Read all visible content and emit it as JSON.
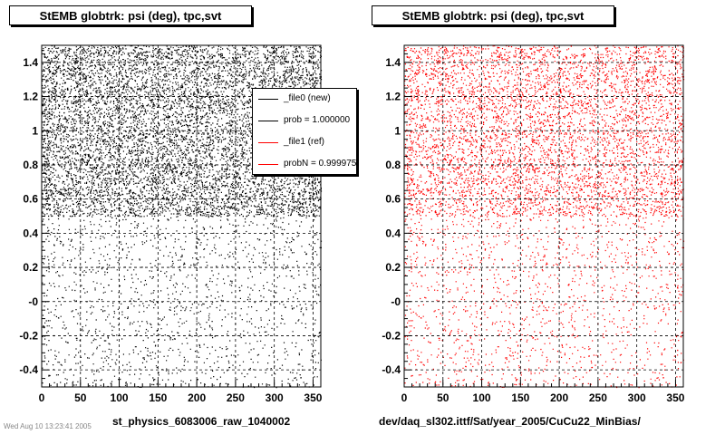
{
  "chart_data": [
    {
      "type": "scatter",
      "title": "StEMB globtrk: psi (deg), tpc,svt",
      "xlabel": "st_physics_6083006_raw_1040002",
      "ylabel": "",
      "xlim": [
        0,
        360
      ],
      "ylim": [
        -0.5,
        1.5
      ],
      "x_ticks": [
        0,
        50,
        100,
        150,
        200,
        250,
        300,
        350
      ],
      "y_ticks": [
        -0.4,
        -0.2,
        0,
        0.2,
        0.4,
        0.6,
        0.8,
        1,
        1.2,
        1.4
      ],
      "y_tick_labels": [
        "-0.4",
        "-0.2",
        "-0",
        "0.2",
        "0.4",
        "0.6",
        "0.8",
        "1",
        "1.2",
        "1.4"
      ],
      "grid": true,
      "series": [
        {
          "name": "_file0 (new)",
          "color": "#000000",
          "dense_band_y": [
            0.5,
            1.5
          ],
          "sparse_band_y": [
            -0.5,
            0.5
          ],
          "x_range": [
            0,
            360
          ]
        }
      ],
      "legend": {
        "placement": "top-right",
        "entries": [
          {
            "label": "_file0 (new)",
            "color": "#000000"
          },
          {
            "label": "prob = 1.000000",
            "color": "#000000"
          },
          {
            "label": "_file1 (ref)",
            "color": "#ff0000"
          },
          {
            "label": "probN = 0.999975",
            "color": "#ff0000"
          }
        ]
      }
    },
    {
      "type": "scatter",
      "title": "StEMB globtrk: psi (deg), tpc,svt",
      "xlabel": "dev/daq_sl302.ittf/Sat/year_2005/CuCu22_MinBias/",
      "ylabel": "",
      "xlim": [
        0,
        360
      ],
      "ylim": [
        -0.5,
        1.5
      ],
      "x_ticks": [
        0,
        50,
        100,
        150,
        200,
        250,
        300,
        350
      ],
      "y_ticks": [
        -0.4,
        -0.2,
        0,
        0.2,
        0.4,
        0.6,
        0.8,
        1,
        1.2,
        1.4
      ],
      "y_tick_labels": [
        "-0.4",
        "-0.2",
        "-0",
        "0.2",
        "0.4",
        "0.6",
        "0.8",
        "1",
        "1.2",
        "1.4"
      ],
      "grid": true,
      "series": [
        {
          "name": "_file1 (ref)",
          "color": "#ff0000",
          "dense_band_y": [
            0.5,
            1.5
          ],
          "sparse_band_y": [
            -0.5,
            0.5
          ],
          "x_range": [
            0,
            360
          ]
        }
      ]
    }
  ],
  "cutoff_note": "Wed Aug 10 13:23:41 2005"
}
